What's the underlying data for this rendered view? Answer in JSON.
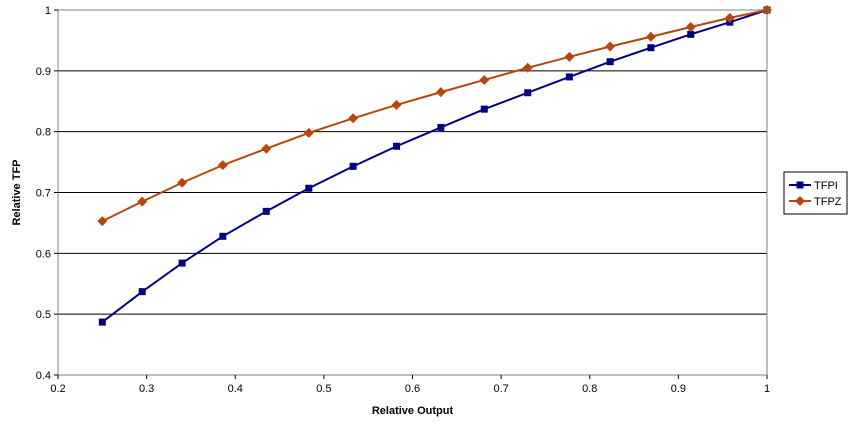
{
  "chart_data": {
    "type": "line",
    "title": "",
    "xlabel": "Relative Output",
    "ylabel": "Relative TFP",
    "xlim": [
      0.2,
      1
    ],
    "ylim": [
      0.4,
      1
    ],
    "xticks": [
      0.2,
      0.3,
      0.4,
      0.5,
      0.6,
      0.7,
      0.8,
      0.9,
      1
    ],
    "yticks": [
      0.4,
      0.5,
      0.6,
      0.7,
      0.8,
      0.9,
      1
    ],
    "xtick_labels": [
      "0.2",
      "0.3",
      "0.4",
      "0.5",
      "0.6",
      "0.7",
      "0.8",
      "0.9",
      "1"
    ],
    "ytick_labels": [
      "0.4",
      "0.5",
      "0.6",
      "0.7",
      "0.8",
      "0.9",
      "1"
    ],
    "grid": "horizontal",
    "legend_position": "right",
    "x": [
      0.25,
      0.295,
      0.34,
      0.386,
      0.435,
      0.483,
      0.533,
      0.582,
      0.632,
      0.681,
      0.73,
      0.777,
      0.823,
      0.869,
      0.914,
      0.958,
      1.0
    ],
    "series": [
      {
        "name": "TFPI",
        "color": "#000080",
        "marker": "square",
        "values": [
          0.487,
          0.537,
          0.584,
          0.628,
          0.669,
          0.707,
          0.743,
          0.776,
          0.807,
          0.837,
          0.864,
          0.89,
          0.915,
          0.938,
          0.96,
          0.98,
          1.0
        ]
      },
      {
        "name": "TFPZ",
        "color": "#B5470F",
        "marker": "diamond",
        "values": [
          0.653,
          0.685,
          0.716,
          0.745,
          0.772,
          0.798,
          0.822,
          0.844,
          0.865,
          0.885,
          0.905,
          0.923,
          0.94,
          0.956,
          0.972,
          0.987,
          1.0
        ]
      }
    ]
  }
}
